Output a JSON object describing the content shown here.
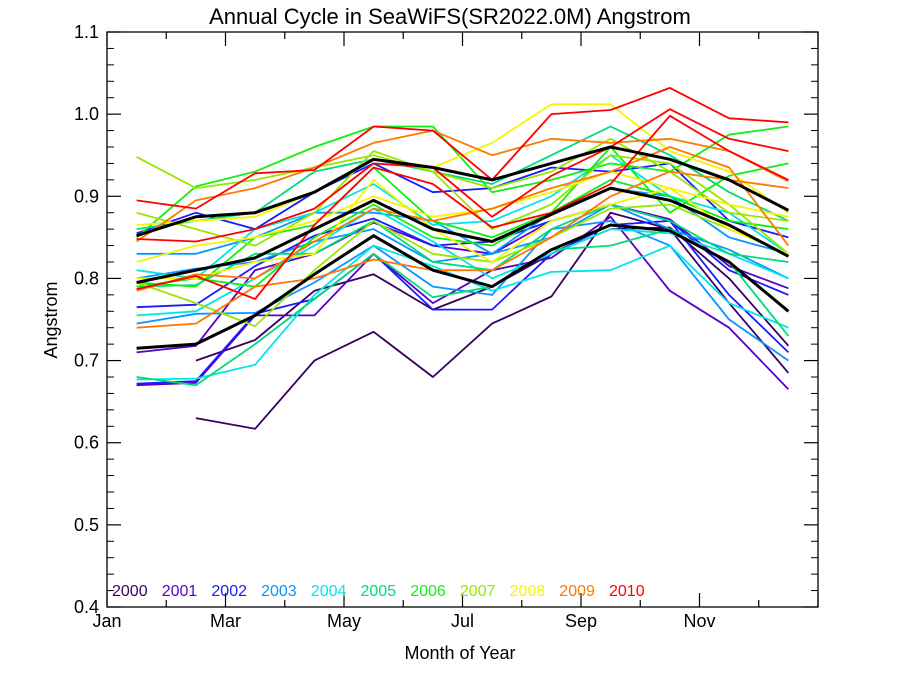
{
  "chart_data": {
    "type": "line",
    "title": "Annual Cycle in SeaWiFS(SR2022.0M) Angstrom",
    "xlabel": "Month of Year",
    "ylabel": "Angstrom",
    "xlim": [
      1,
      13
    ],
    "ylim": [
      0.4,
      1.1
    ],
    "x_tick_labels": [
      {
        "x": 1,
        "label": "Jan"
      },
      {
        "x": 3,
        "label": "Mar"
      },
      {
        "x": 5,
        "label": "May"
      },
      {
        "x": 7,
        "label": "Jul"
      },
      {
        "x": 9,
        "label": "Sep"
      },
      {
        "x": 11,
        "label": "Nov"
      }
    ],
    "y_tick_labels": [
      "0.4",
      "0.5",
      "0.6",
      "0.7",
      "0.8",
      "0.9",
      "1.0",
      "1.1"
    ],
    "grid": false,
    "legend_placement": "bottom-left",
    "x": [
      1.5,
      2.5,
      3.5,
      4.5,
      5.5,
      6.5,
      7.5,
      8.5,
      9.5,
      10.5,
      11.5,
      12.5
    ],
    "series": [
      {
        "name": "2000",
        "color": "#3a0060",
        "lines": [
          [
            null,
            0.63,
            0.617,
            0.7,
            0.735,
            0.68,
            0.745,
            0.778,
            0.88,
            0.86,
            0.77,
            0.685
          ],
          [
            null,
            0.7,
            0.725,
            0.785,
            0.805,
            0.762,
            0.79,
            0.83,
            0.86,
            0.862,
            0.8,
            0.718
          ]
        ]
      },
      {
        "name": "2001",
        "color": "#5a00c8",
        "lines": [
          [
            0.67,
            0.673,
            0.755,
            0.755,
            0.83,
            0.77,
            0.81,
            0.825,
            0.875,
            0.785,
            0.74,
            0.665
          ],
          [
            0.71,
            0.718,
            0.81,
            0.83,
            0.868,
            0.84,
            0.83,
            0.87,
            0.89,
            0.872,
            0.815,
            0.788
          ]
        ]
      },
      {
        "name": "2002",
        "color": "#1a1aff",
        "lines": [
          [
            0.672,
            0.675,
            0.757,
            0.775,
            0.83,
            0.762,
            0.762,
            0.83,
            0.865,
            0.87,
            0.78,
            0.71
          ],
          [
            0.765,
            0.768,
            0.815,
            0.852,
            0.873,
            0.84,
            0.845,
            0.87,
            0.89,
            0.87,
            0.81,
            0.78
          ],
          [
            0.855,
            0.88,
            0.86,
            0.905,
            0.94,
            0.905,
            0.91,
            0.935,
            0.93,
            0.94,
            0.87,
            0.85
          ]
        ]
      },
      {
        "name": "2003",
        "color": "#0a96ff",
        "lines": [
          [
            0.745,
            0.757,
            0.758,
            0.795,
            0.84,
            0.79,
            0.78,
            0.86,
            0.87,
            0.84,
            0.75,
            0.7
          ],
          [
            0.8,
            0.812,
            0.82,
            0.845,
            0.86,
            0.82,
            0.83,
            0.85,
            0.89,
            0.86,
            0.835,
            0.8
          ],
          [
            0.83,
            0.83,
            0.85,
            0.88,
            0.88,
            0.87,
            0.83,
            0.88,
            0.91,
            0.9,
            0.85,
            0.83
          ]
        ]
      },
      {
        "name": "2004",
        "color": "#00e6e6",
        "lines": [
          [
            0.677,
            0.678,
            0.695,
            0.78,
            0.84,
            0.815,
            0.785,
            0.808,
            0.81,
            0.84,
            0.77,
            0.74
          ],
          [
            0.755,
            0.76,
            0.8,
            0.84,
            0.885,
            0.845,
            0.8,
            0.83,
            0.86,
            0.855,
            0.83,
            0.8
          ],
          [
            0.81,
            0.8,
            0.86,
            0.88,
            0.915,
            0.865,
            0.87,
            0.9,
            0.95,
            0.9,
            0.88,
            0.83
          ]
        ]
      },
      {
        "name": "2005",
        "color": "#00dc78",
        "lines": [
          [
            0.68,
            0.67,
            0.72,
            0.775,
            0.83,
            0.777,
            0.79,
            0.835,
            0.84,
            0.86,
            0.82,
            0.73
          ],
          [
            0.79,
            0.792,
            0.83,
            0.83,
            0.87,
            0.82,
            0.81,
            0.86,
            0.89,
            0.87,
            0.83,
            0.82
          ],
          [
            0.86,
            0.87,
            0.88,
            0.93,
            0.945,
            0.93,
            0.915,
            0.95,
            0.985,
            0.95,
            0.905,
            0.87
          ]
        ]
      },
      {
        "name": "2006",
        "color": "#10f010",
        "lines": [
          [
            0.79,
            0.8,
            0.79,
            0.85,
            0.89,
            0.85,
            0.84,
            0.88,
            0.92,
            0.9,
            0.87,
            0.86
          ],
          [
            0.85,
            0.912,
            0.93,
            0.96,
            0.985,
            0.985,
            0.905,
            0.92,
            0.94,
            0.93,
            0.975,
            0.985
          ],
          [
            0.795,
            0.79,
            0.85,
            0.865,
            0.935,
            0.87,
            0.85,
            0.88,
            0.96,
            0.88,
            0.925,
            0.94
          ]
        ]
      },
      {
        "name": "2007",
        "color": "#9ae600",
        "lines": [
          [
            0.948,
            0.91,
            0.92,
            0.935,
            0.95,
            0.93,
            0.91,
            0.93,
            0.97,
            0.93,
            0.88,
            0.87
          ],
          [
            0.88,
            0.86,
            0.84,
            0.88,
            0.955,
            0.93,
            0.86,
            0.89,
            0.95,
            0.94,
            0.89,
            0.83
          ],
          [
            0.795,
            0.77,
            0.742,
            0.81,
            0.87,
            0.83,
            0.82,
            0.85,
            0.885,
            0.89,
            0.86,
            0.83
          ]
        ]
      },
      {
        "name": "2008",
        "color": "#f5f500",
        "lines": [
          [
            0.865,
            0.87,
            0.875,
            0.905,
            0.945,
            0.935,
            0.965,
            1.012,
            1.012,
            0.955,
            0.93,
            0.88
          ],
          [
            0.82,
            0.84,
            0.85,
            0.87,
            0.9,
            0.875,
            0.885,
            0.905,
            0.93,
            0.91,
            0.89,
            0.875
          ],
          [
            0.8,
            0.8,
            0.82,
            0.83,
            0.92,
            0.86,
            0.82,
            0.87,
            0.89,
            0.91,
            0.86,
            0.83
          ]
        ]
      },
      {
        "name": "2009",
        "color": "#ff7800",
        "lines": [
          [
            0.74,
            0.745,
            0.79,
            0.8,
            0.823,
            0.81,
            0.81,
            0.85,
            0.9,
            0.93,
            0.92,
            0.91
          ],
          [
            0.785,
            0.805,
            0.8,
            0.845,
            0.885,
            0.87,
            0.885,
            0.91,
            0.93,
            0.96,
            0.935,
            0.84
          ],
          [
            0.845,
            0.895,
            0.91,
            0.935,
            0.965,
            0.98,
            0.95,
            0.97,
            0.965,
            0.97,
            0.955,
            0.918
          ]
        ]
      },
      {
        "name": "2010",
        "color": "#ff0000",
        "lines": [
          [
            0.895,
            0.885,
            0.928,
            0.932,
            0.985,
            0.98,
            0.92,
            1.0,
            1.005,
            1.032,
            0.995,
            0.99
          ],
          [
            0.848,
            0.845,
            0.86,
            0.885,
            0.94,
            0.935,
            0.875,
            0.925,
            0.96,
            1.006,
            0.97,
            0.955
          ],
          [
            0.787,
            0.803,
            0.775,
            0.865,
            0.935,
            0.915,
            0.862,
            0.88,
            0.915,
            0.998,
            0.955,
            0.92
          ]
        ]
      },
      {
        "color": "#000000",
        "bold": true,
        "lines": [
          [
            0.715,
            0.72,
            0.755,
            0.805,
            0.852,
            0.81,
            0.79,
            0.835,
            0.865,
            0.858,
            0.82,
            0.76
          ],
          [
            0.795,
            0.81,
            0.825,
            0.86,
            0.895,
            0.86,
            0.845,
            0.878,
            0.91,
            0.895,
            0.865,
            0.827
          ],
          [
            0.852,
            0.875,
            0.88,
            0.905,
            0.945,
            0.935,
            0.92,
            0.94,
            0.96,
            0.945,
            0.92,
            0.883
          ]
        ]
      }
    ]
  }
}
